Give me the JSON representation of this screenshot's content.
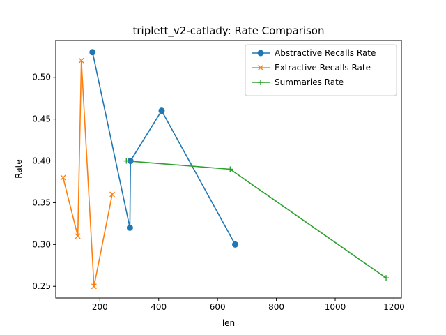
{
  "chart_data": {
    "type": "line",
    "title": "triplett_v2-catlady: Rate Comparison",
    "xlabel": "len",
    "ylabel": "Rate",
    "xlim": [
      50,
      1225
    ],
    "ylim": [
      0.236,
      0.544
    ],
    "xticks": [
      {
        "value": 200,
        "label": "200"
      },
      {
        "value": 400,
        "label": "400"
      },
      {
        "value": 600,
        "label": "600"
      },
      {
        "value": 800,
        "label": "800"
      },
      {
        "value": 1000,
        "label": "1000"
      },
      {
        "value": 1200,
        "label": "1200"
      }
    ],
    "yticks": [
      {
        "value": 0.25,
        "label": "0.25"
      },
      {
        "value": 0.3,
        "label": "0.30"
      },
      {
        "value": 0.35,
        "label": "0.35"
      },
      {
        "value": 0.4,
        "label": "0.40"
      },
      {
        "value": 0.45,
        "label": "0.45"
      },
      {
        "value": 0.5,
        "label": "0.50"
      }
    ],
    "grid": false,
    "legend_position": "top-right",
    "series": [
      {
        "name": "Abstractive Recalls Rate",
        "color": "#1f77b4",
        "marker": "circle",
        "points": [
          {
            "x": 175,
            "y": 0.53
          },
          {
            "x": 302,
            "y": 0.32
          },
          {
            "x": 304,
            "y": 0.4
          },
          {
            "x": 410,
            "y": 0.46
          },
          {
            "x": 660,
            "y": 0.3
          }
        ]
      },
      {
        "name": "Extractive Recalls Rate",
        "color": "#ff7f0e",
        "marker": "x",
        "points": [
          {
            "x": 75,
            "y": 0.38
          },
          {
            "x": 125,
            "y": 0.31
          },
          {
            "x": 137,
            "y": 0.52
          },
          {
            "x": 180,
            "y": 0.25
          },
          {
            "x": 242,
            "y": 0.36
          }
        ]
      },
      {
        "name": "Summaries Rate",
        "color": "#2ca02c",
        "marker": "plus",
        "points": [
          {
            "x": 290,
            "y": 0.4
          },
          {
            "x": 643,
            "y": 0.39
          },
          {
            "x": 1173,
            "y": 0.26
          }
        ]
      }
    ]
  }
}
